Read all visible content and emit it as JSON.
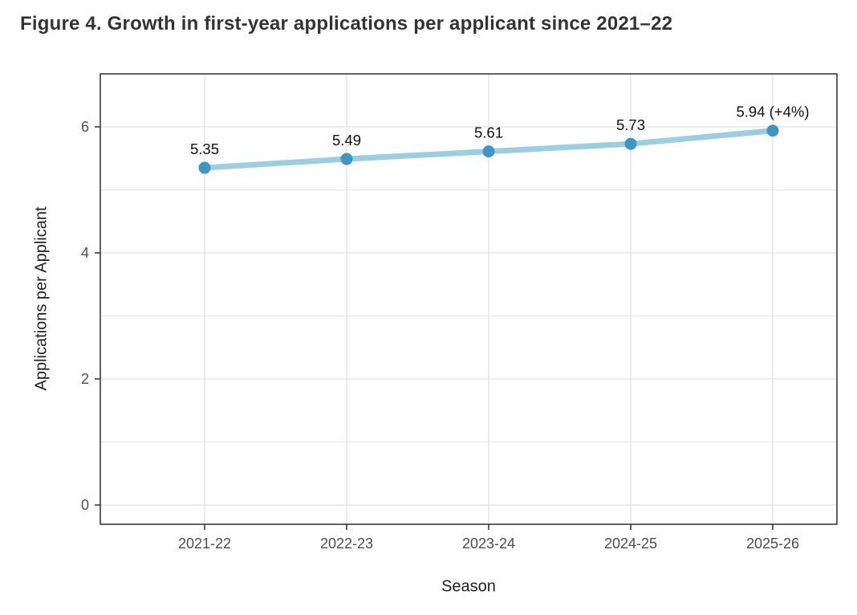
{
  "title": "Figure 4. Growth in first-year applications per applicant since 2021–22",
  "chart_data": {
    "type": "line",
    "title": "Figure 4. Growth in first-year applications per applicant since 2021–22",
    "categories": [
      "2021-22",
      "2022-23",
      "2023-24",
      "2024-25",
      "2025-26"
    ],
    "series": [
      {
        "name": "Applications per Applicant",
        "values": [
          5.35,
          5.49,
          5.61,
          5.73,
          5.94
        ],
        "point_labels": [
          "5.35",
          "5.49",
          "5.61",
          "5.73",
          "5.94 (+4%)"
        ]
      }
    ],
    "xlabel": "Season",
    "ylabel": "Applications per Applicant",
    "ylim": [
      -0.3,
      6.85
    ],
    "yticks": [
      0,
      2,
      4,
      6
    ],
    "y_minor_ticks": [
      1,
      3,
      5
    ],
    "grid": true,
    "legend": "none",
    "colors": {
      "line": "#9BCDE3",
      "point": "#3E96C4",
      "grid": "#E5E5E5",
      "panel_border": "#2F2F2F",
      "panel_background": "#FFFFFF",
      "tick_text": "#4D4D4D",
      "label_text": "#111111",
      "axis_title_text": "#1F1F1F",
      "title_text": "#333333"
    }
  }
}
